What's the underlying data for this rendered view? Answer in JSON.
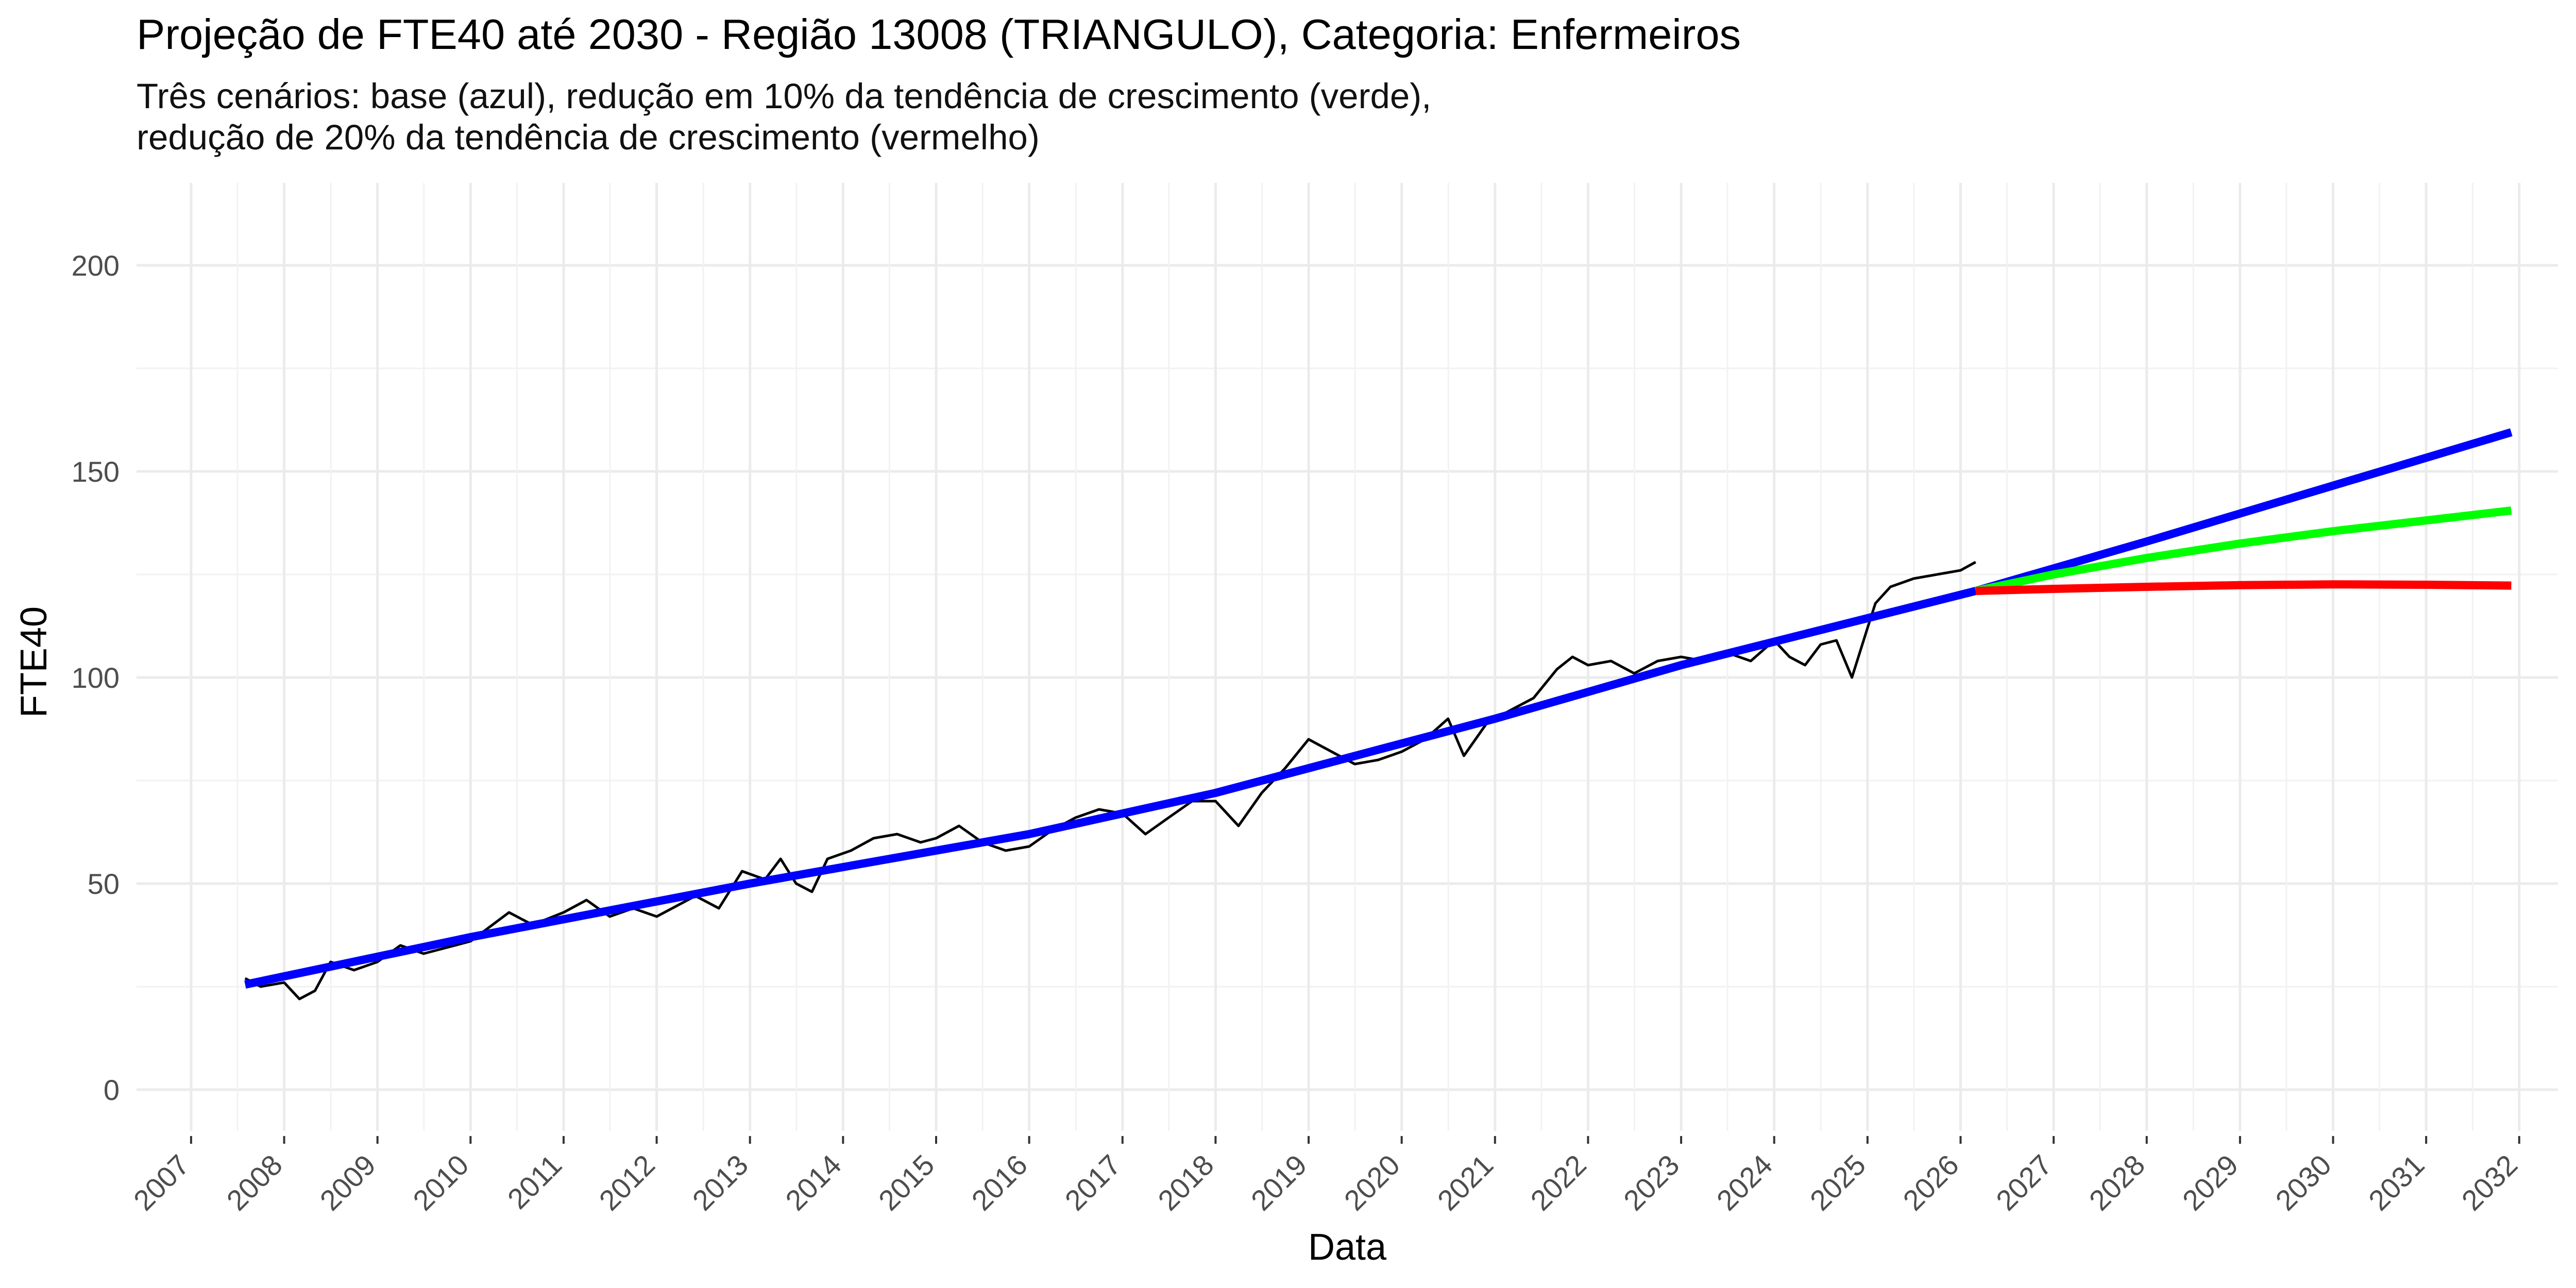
{
  "chart_data": {
    "type": "line",
    "title": "Projeção de FTE40 até 2030 - Região 13008 (TRIANGULO), Categoria: Enfermeiros",
    "subtitle_lines": [
      "Três cenários: base (azul), redução em 10% da tendência de crescimento (verde),",
      " redução de 20% da tendência de crescimento (vermelho)"
    ],
    "xlabel": "Data",
    "ylabel": "FTE40",
    "x_type": "date",
    "xlim": [
      "2006-06-01",
      "2032-06-01"
    ],
    "ylim": [
      -10,
      220
    ],
    "x_ticks": [
      "2007",
      "2008",
      "2009",
      "2010",
      "2011",
      "2012",
      "2013",
      "2014",
      "2015",
      "2016",
      "2017",
      "2018",
      "2019",
      "2020",
      "2021",
      "2022",
      "2023",
      "2024",
      "2025",
      "2026",
      "2027",
      "2028",
      "2029",
      "2030",
      "2031",
      "2032"
    ],
    "y_ticks": [
      0,
      50,
      100,
      150,
      200
    ],
    "grid": true,
    "legend": "none",
    "series": [
      {
        "color": "#000000",
        "points": [
          [
            "2007-08-01",
            27
          ],
          [
            "2007-10-01",
            25
          ],
          [
            "2008-01-01",
            26
          ],
          [
            "2008-03-01",
            22
          ],
          [
            "2008-05-01",
            24
          ],
          [
            "2008-07-01",
            31
          ],
          [
            "2008-10-01",
            29
          ],
          [
            "2009-01-01",
            31
          ],
          [
            "2009-04-01",
            35
          ],
          [
            "2009-07-01",
            33
          ],
          [
            "2010-01-01",
            36
          ],
          [
            "2010-06-01",
            43
          ],
          [
            "2010-09-01",
            40
          ],
          [
            "2011-01-01",
            43
          ],
          [
            "2011-04-01",
            46
          ],
          [
            "2011-07-01",
            42
          ],
          [
            "2011-10-01",
            44
          ],
          [
            "2012-01-01",
            42
          ],
          [
            "2012-06-01",
            47
          ],
          [
            "2012-09-01",
            44
          ],
          [
            "2012-12-01",
            53
          ],
          [
            "2013-03-01",
            51
          ],
          [
            "2013-05-01",
            56
          ],
          [
            "2013-07-01",
            50
          ],
          [
            "2013-09-01",
            48
          ],
          [
            "2013-11-01",
            56
          ],
          [
            "2014-02-01",
            58
          ],
          [
            "2014-05-01",
            61
          ],
          [
            "2014-08-01",
            62
          ],
          [
            "2014-11-01",
            60
          ],
          [
            "2015-01-01",
            61
          ],
          [
            "2015-04-01",
            64
          ],
          [
            "2015-07-01",
            60
          ],
          [
            "2015-10-01",
            58
          ],
          [
            "2016-01-01",
            59
          ],
          [
            "2016-04-01",
            63
          ],
          [
            "2016-07-01",
            66
          ],
          [
            "2016-10-01",
            68
          ],
          [
            "2017-01-01",
            67
          ],
          [
            "2017-04-01",
            62
          ],
          [
            "2017-07-01",
            66
          ],
          [
            "2017-10-01",
            70
          ],
          [
            "2018-01-01",
            70
          ],
          [
            "2018-04-01",
            64
          ],
          [
            "2018-07-01",
            72
          ],
          [
            "2018-10-01",
            78
          ],
          [
            "2019-01-01",
            85
          ],
          [
            "2019-04-01",
            82
          ],
          [
            "2019-07-01",
            79
          ],
          [
            "2019-10-01",
            80
          ],
          [
            "2020-01-01",
            82
          ],
          [
            "2020-04-01",
            85
          ],
          [
            "2020-07-01",
            90
          ],
          [
            "2020-09-01",
            81
          ],
          [
            "2020-12-01",
            89
          ],
          [
            "2021-03-01",
            92
          ],
          [
            "2021-06-01",
            95
          ],
          [
            "2021-09-01",
            102
          ],
          [
            "2021-11-01",
            105
          ],
          [
            "2022-01-01",
            103
          ],
          [
            "2022-04-01",
            104
          ],
          [
            "2022-07-01",
            101
          ],
          [
            "2022-10-01",
            104
          ],
          [
            "2023-01-01",
            105
          ],
          [
            "2023-04-01",
            104
          ],
          [
            "2023-07-01",
            106
          ],
          [
            "2023-10-01",
            104
          ],
          [
            "2024-01-01",
            109
          ],
          [
            "2024-03-01",
            105
          ],
          [
            "2024-05-01",
            103
          ],
          [
            "2024-07-01",
            108
          ],
          [
            "2024-09-01",
            109
          ],
          [
            "2024-11-01",
            100
          ],
          [
            "2025-01-01",
            112
          ],
          [
            "2025-02-01",
            118
          ],
          [
            "2025-04-01",
            122
          ],
          [
            "2025-07-01",
            124
          ],
          [
            "2025-10-01",
            125
          ],
          [
            "2026-01-01",
            126
          ],
          [
            "2026-03-01",
            128
          ]
        ]
      },
      {
        "color": "#0000ff",
        "points": [
          [
            "2007-08-01",
            25.5
          ],
          [
            "2010-01-01",
            37
          ],
          [
            "2013-01-01",
            50
          ],
          [
            "2016-01-01",
            62
          ],
          [
            "2018-01-01",
            72
          ],
          [
            "2021-01-01",
            90
          ],
          [
            "2023-01-01",
            103
          ],
          [
            "2026-03-01",
            121
          ],
          [
            "2028-01-01",
            133
          ],
          [
            "2031-12-01",
            159.5
          ]
        ]
      },
      {
        "color": "#00ff00",
        "points": [
          [
            "2026-03-01",
            121
          ],
          [
            "2027-01-01",
            125
          ],
          [
            "2028-01-01",
            129
          ],
          [
            "2029-01-01",
            132.5
          ],
          [
            "2030-01-01",
            135.5
          ],
          [
            "2031-12-01",
            140.5
          ]
        ]
      },
      {
        "color": "#ff0000",
        "points": [
          [
            "2026-03-01",
            121
          ],
          [
            "2027-01-01",
            121.5
          ],
          [
            "2028-01-01",
            122
          ],
          [
            "2029-01-01",
            122.4
          ],
          [
            "2030-01-01",
            122.6
          ],
          [
            "2031-01-01",
            122.5
          ],
          [
            "2031-12-01",
            122.3
          ]
        ]
      }
    ]
  }
}
